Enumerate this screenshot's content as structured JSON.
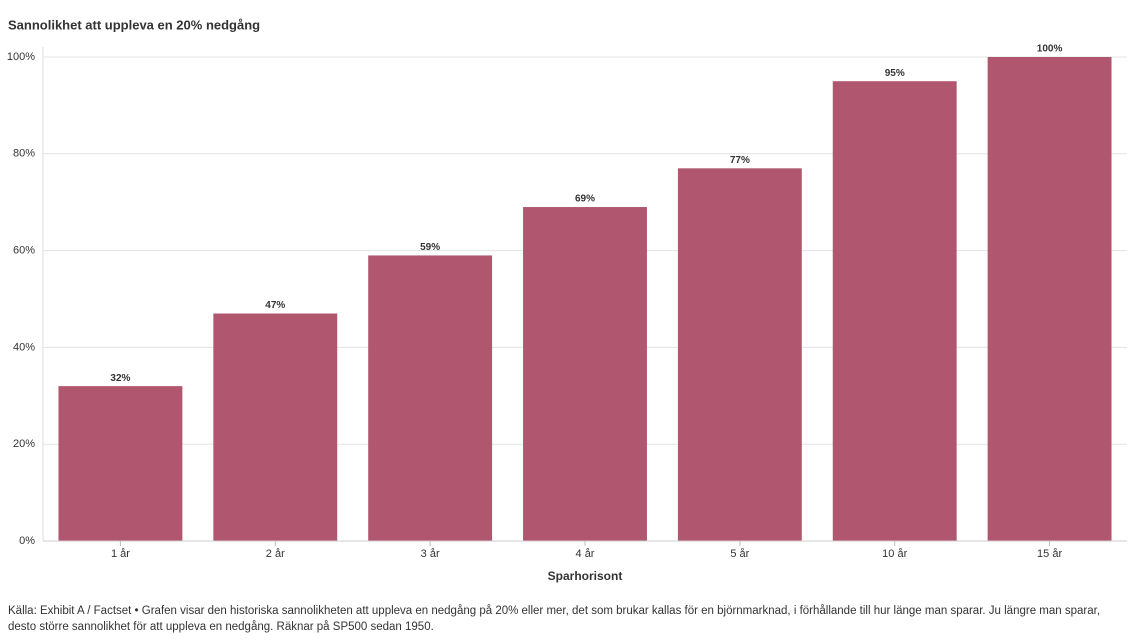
{
  "chart_data": {
    "type": "bar",
    "title": "Sannolikhet att uppleva en 20% nedgång",
    "categories": [
      "1 år",
      "2 år",
      "3 år",
      "4 år",
      "5 år",
      "10 år",
      "15 år"
    ],
    "values": [
      32,
      47,
      59,
      69,
      77,
      95,
      100
    ],
    "value_labels": [
      "32%",
      "47%",
      "59%",
      "69%",
      "77%",
      "95%",
      "100%"
    ],
    "color": "#b0566e",
    "x_label": "Sparhorisont",
    "ylim": [
      0,
      100
    ],
    "yticks": [
      {
        "value": 0,
        "label": "0%"
      },
      {
        "value": 20,
        "label": "20%"
      },
      {
        "value": 40,
        "label": "40%"
      },
      {
        "value": 60,
        "label": "60%"
      },
      {
        "value": 80,
        "label": "80%"
      },
      {
        "value": 100,
        "label": "100%"
      }
    ],
    "grid": true,
    "note": "Källa: Exhibit A / Factset • Grafen visar den historiska sannolikheten att uppleva en nedgång på 20% eller mer, det som brukar kallas för en björnmarknad, i förhållande till hur länge man sparar. Ju längre man sparar, desto större sannolikhet för att uppleva en nedgång. Räknar på SP500 sedan 1950."
  }
}
